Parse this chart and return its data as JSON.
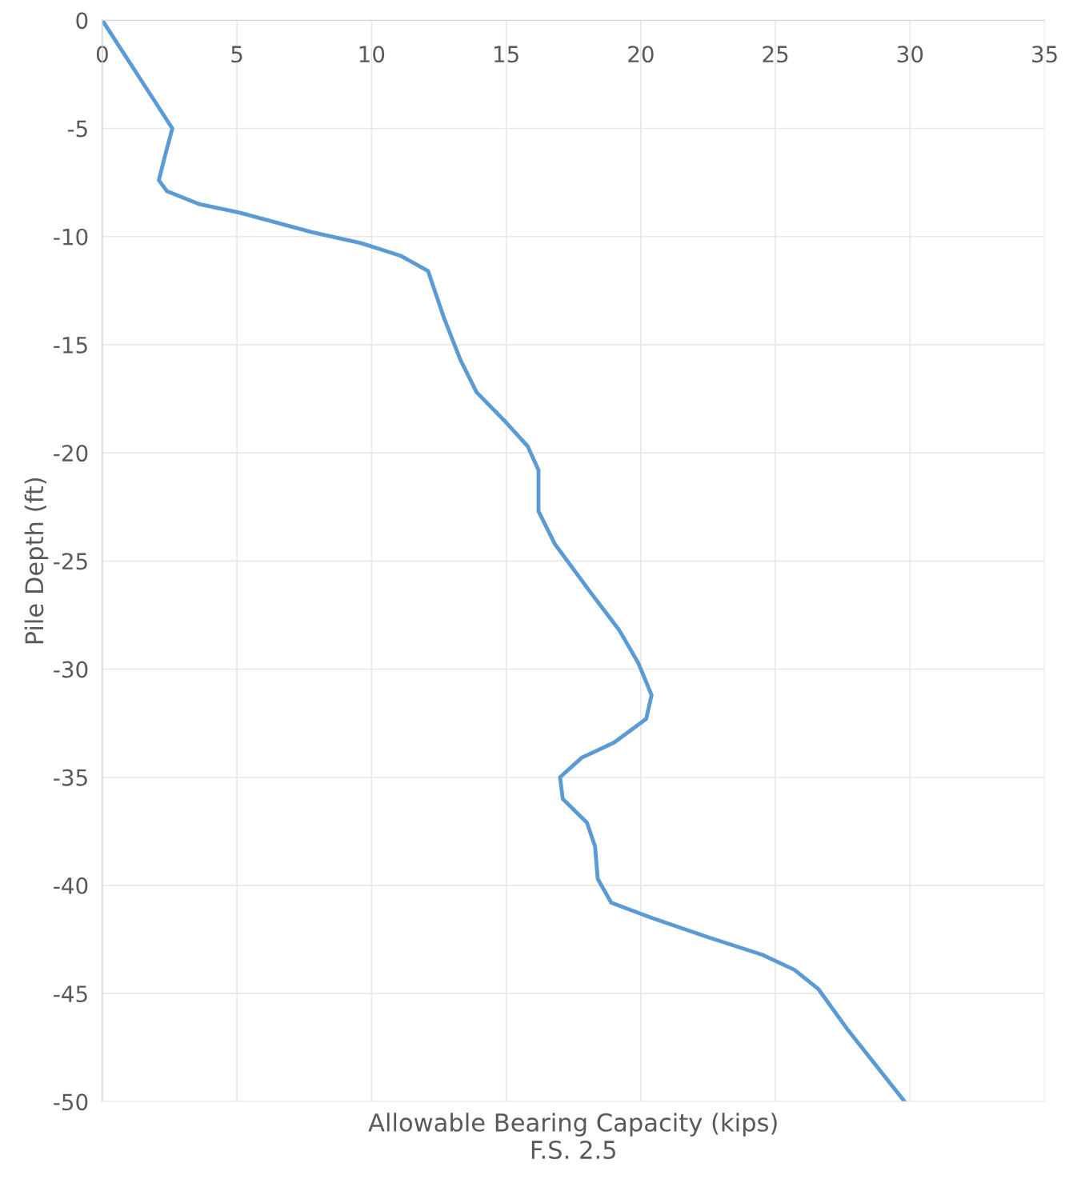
{
  "chart_data": {
    "type": "line",
    "xlabel": "Allowable Bearing Capacity (kips)\nF.S. 2.5",
    "ylabel": "Pile Depth (ft)",
    "x": [
      0,
      2.6,
      2.3,
      2.1,
      2.4,
      3.6,
      5.1,
      7.8,
      9.6,
      11.1,
      12.1,
      12.4,
      12.7,
      13.3,
      13.9,
      15,
      15.8,
      16.2,
      16.2,
      16.8,
      18.1,
      19.2,
      19.9,
      20.4,
      20.2,
      19,
      17.8,
      17,
      17.1,
      18,
      18.3,
      18.4,
      18.9,
      20.4,
      22.5,
      24.5,
      25.7,
      26.6,
      27.7,
      29.8
    ],
    "series": [
      {
        "color": "#5b9bd5",
        "values": [
          0,
          -5,
          -6.4,
          -7.4,
          -7.9,
          -8.5,
          -8.9,
          -9.8,
          -10.3,
          -10.9,
          -11.6,
          -12.7,
          -13.8,
          -15.7,
          -17.2,
          -18.6,
          -19.7,
          -20.8,
          -22.7,
          -24.2,
          -26.4,
          -28.2,
          -29.7,
          -31.2,
          -32.3,
          -33.4,
          -34.1,
          -35,
          -36,
          -37.1,
          -38.2,
          -39.7,
          -40.8,
          -41.5,
          -42.4,
          -43.2,
          -43.9,
          -44.8,
          -46.7,
          -50
        ]
      }
    ],
    "xlim": [
      0,
      35
    ],
    "xticks": [
      0,
      5,
      10,
      15,
      20,
      25,
      30,
      35
    ],
    "ylim": [
      -50,
      0
    ],
    "yticks": [
      0,
      -5,
      -10,
      -15,
      -20,
      -25,
      -30,
      -35,
      -40,
      -45,
      -50
    ],
    "grid": true,
    "marker": "none",
    "line_style": "solid"
  }
}
